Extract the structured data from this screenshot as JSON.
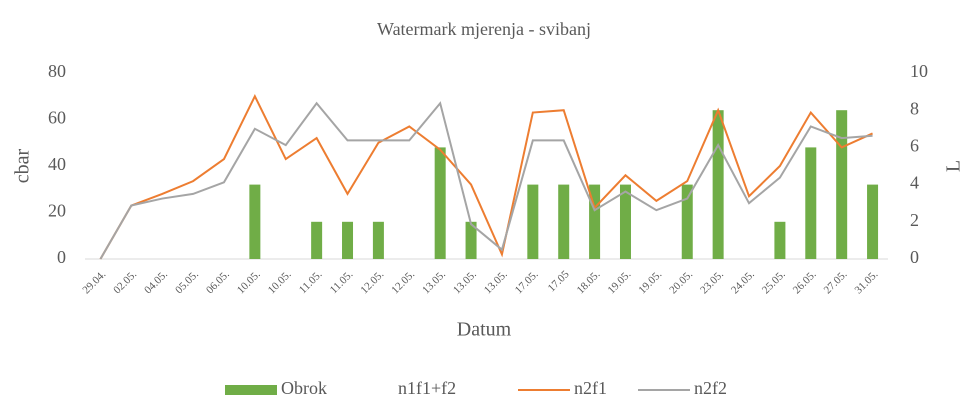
{
  "chart_data": {
    "type": "bar_line",
    "title": "Watermark mjerenja - svibanj",
    "x_label": "Datum",
    "y_label": "cbar",
    "y2_label": "L",
    "categories": [
      "29.04.",
      "02.05.",
      "04.05.",
      "05.05.",
      "06.05.",
      "10.05.",
      "10.05.",
      "11.05.",
      "11.05.",
      "12.05.",
      "12.05.",
      "13.05.",
      "13.05.",
      "13.05.",
      "17.05.",
      "17.05",
      "18.05.",
      "19.05.",
      "19.05.",
      "20.05.",
      "23.05.",
      "24.05.",
      "25.05.",
      "26.05.",
      "27.05.",
      "31.05."
    ],
    "series": [
      {
        "name": "Obrok",
        "type": "bar",
        "axis": "y2",
        "color": "#70ad47",
        "values": [
          null,
          null,
          null,
          null,
          null,
          4,
          null,
          2,
          2,
          2,
          null,
          6,
          2,
          null,
          4,
          4,
          4,
          4,
          null,
          4,
          8,
          null,
          2,
          6,
          8,
          4
        ]
      },
      {
        "name": "n1f1+f2",
        "type": "line",
        "values": [
          null,
          null,
          null,
          null,
          null,
          null,
          null,
          null,
          null,
          null,
          null,
          null,
          null,
          null,
          null,
          null,
          null,
          null,
          null,
          null,
          null,
          null,
          null,
          null,
          null,
          null
        ]
      },
      {
        "name": "n2f1",
        "type": "line",
        "color": "#ed7d31",
        "values": [
          0,
          23,
          28,
          33.5,
          43,
          70,
          43,
          52,
          28,
          50,
          57,
          47,
          32,
          2,
          63,
          64,
          22,
          36,
          25,
          33.5,
          64,
          27,
          40,
          63,
          48,
          54
        ]
      },
      {
        "name": "n2f2",
        "type": "line",
        "color": "#a5a5a5",
        "values": [
          0,
          23,
          26,
          28,
          33,
          56,
          49,
          67,
          51,
          51,
          51,
          67,
          15,
          4,
          51,
          51,
          21,
          29,
          21,
          26,
          49,
          24,
          35,
          57,
          52,
          53
        ]
      }
    ],
    "ylim": [
      0,
      80
    ],
    "yticks": [
      0,
      20,
      40,
      60,
      80
    ],
    "y2lim": [
      0,
      10
    ],
    "y2ticks": [
      0,
      2,
      4,
      6,
      8,
      10
    ],
    "grid": false,
    "legend": "bottom"
  }
}
